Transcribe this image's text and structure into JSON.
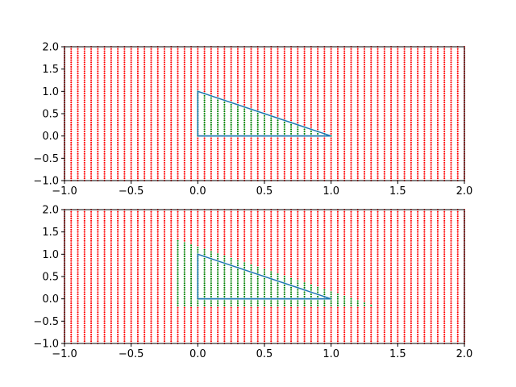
{
  "chart_data": [
    {
      "type": "scatter",
      "title": "",
      "xlabel": "",
      "ylabel": "",
      "xlim": [
        -1.0,
        2.0
      ],
      "ylim": [
        -1.0,
        2.0
      ],
      "grid": false,
      "xticks": [
        "−1.0",
        "−0.5",
        "0.0",
        "0.5",
        "1.0",
        "1.5",
        "2.0"
      ],
      "yticks": [
        "−1.0",
        "−0.5",
        "0.0",
        "0.5",
        "1.0",
        "1.5",
        "2.0"
      ],
      "point_grid": {
        "x_start": -1.0,
        "x_end": 2.0,
        "x_step": 0.05,
        "y_start": -1.0,
        "y_end": 2.0,
        "y_step": 0.05
      },
      "series": [
        {
          "role": "outside-points",
          "color": "#ff0000",
          "marker": "dot"
        },
        {
          "role": "inside-points",
          "color": "#008000",
          "marker": "dot",
          "region": "triangle (0,0)-(1,0)-(0,1)",
          "expansion": 0.0
        }
      ],
      "outline": {
        "color": "#1f77b4",
        "x": [
          0.0,
          1.0,
          0.0,
          0.0
        ],
        "y": [
          0.0,
          0.0,
          1.0,
          0.0
        ],
        "base_line": {
          "x": [
            0.0,
            1.0
          ],
          "y": [
            0.0,
            0.0
          ]
        }
      }
    },
    {
      "type": "scatter",
      "title": "",
      "xlabel": "",
      "ylabel": "",
      "xlim": [
        -1.0,
        2.0
      ],
      "ylim": [
        -1.0,
        2.0
      ],
      "grid": false,
      "xticks": [
        "−1.0",
        "−0.5",
        "0.0",
        "0.5",
        "1.0",
        "1.5",
        "2.0"
      ],
      "yticks": [
        "−1.0",
        "−0.5",
        "0.0",
        "0.5",
        "1.0",
        "1.5",
        "2.0"
      ],
      "point_grid": {
        "x_start": -1.0,
        "x_end": 2.0,
        "x_step": 0.05,
        "y_start": -1.0,
        "y_end": 2.0,
        "y_step": 0.05
      },
      "series": [
        {
          "role": "outside-points",
          "color": "#ff0000",
          "marker": "dot"
        },
        {
          "role": "inside-points",
          "color": "#008000",
          "marker": "dot",
          "region": "triangle (0,0)-(1,0)-(0,1) plus tolerance band",
          "expansion": 0.18
        }
      ],
      "outline": {
        "color": "#1f77b4",
        "x": [
          0.0,
          1.0,
          0.0,
          0.0
        ],
        "y": [
          0.0,
          0.0,
          1.0,
          0.0
        ],
        "base_line": {
          "x": [
            0.0,
            1.0
          ],
          "y": [
            0.0,
            0.0
          ]
        }
      }
    }
  ]
}
